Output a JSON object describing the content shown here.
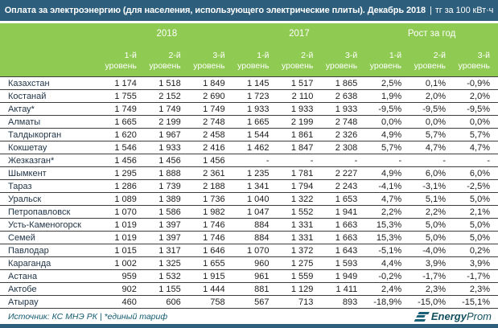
{
  "header": {
    "separator": "|"
  },
  "chart_data": {
    "type": "table",
    "title": "Оплата за электроэнергию (для населения, использующего электрические плиты). Декабрь 2018",
    "unit": "тг за 100 кВт·ч",
    "col_groups": [
      {
        "label": "2018",
        "span": 3
      },
      {
        "label": "2017",
        "span": 3
      },
      {
        "label": "Рост за год",
        "span": 3
      }
    ],
    "sub_columns": [
      {
        "top": "1-й",
        "word": "уровень"
      },
      {
        "top": "2-й",
        "word": "уровень"
      },
      {
        "top": "3-й",
        "word": "уровень"
      },
      {
        "top": "1-й",
        "word": "уровень"
      },
      {
        "top": "2-й",
        "word": "уровень"
      },
      {
        "top": "3-й",
        "word": "уровень"
      },
      {
        "top": "1-й",
        "word": "уровень"
      },
      {
        "top": "2-й",
        "word": "уровень"
      },
      {
        "top": "3-й",
        "word": "уровень"
      }
    ],
    "rows": [
      {
        "region": "Казахстан",
        "values": [
          "1 174",
          "1 518",
          "1 849",
          "1 145",
          "1 517",
          "1 865",
          "2,5%",
          "0,1%",
          "-0,9%"
        ]
      },
      {
        "region": "Костанай",
        "values": [
          "1 755",
          "2 152",
          "2 690",
          "1 723",
          "2 110",
          "2 638",
          "1,9%",
          "2,0%",
          "2,0%"
        ]
      },
      {
        "region": "Актау*",
        "values": [
          "1 749",
          "1 749",
          "1 749",
          "1 933",
          "1 933",
          "1 933",
          "-9,5%",
          "-9,5%",
          "-9,5%"
        ]
      },
      {
        "region": "Алматы",
        "values": [
          "1 665",
          "2 199",
          "2 748",
          "1 665",
          "2 199",
          "2 748",
          "0,0%",
          "0,0%",
          "0,0%"
        ]
      },
      {
        "region": "Талдыкорган",
        "values": [
          "1 620",
          "1 967",
          "2 458",
          "1 544",
          "1 861",
          "2 326",
          "4,9%",
          "5,7%",
          "5,7%"
        ]
      },
      {
        "region": "Кокшетау",
        "values": [
          "1 546",
          "1 933",
          "2 416",
          "1 462",
          "1 847",
          "2 308",
          "5,7%",
          "4,7%",
          "4,7%"
        ]
      },
      {
        "region": "Жезказган*",
        "values": [
          "1 456",
          "1 456",
          "1 456",
          "-",
          "-",
          "-",
          "-",
          "-",
          "-"
        ]
      },
      {
        "region": "Шымкент",
        "values": [
          "1 295",
          "1 888",
          "2 361",
          "1 235",
          "1 781",
          "2 227",
          "4,9%",
          "6,0%",
          "6,0%"
        ]
      },
      {
        "region": "Тараз",
        "values": [
          "1 286",
          "1 739",
          "2 188",
          "1 341",
          "1 794",
          "2 243",
          "-4,1%",
          "-3,1%",
          "-2,5%"
        ]
      },
      {
        "region": "Уральск",
        "values": [
          "1 089",
          "1 389",
          "1 736",
          "1 040",
          "1 322",
          "1 653",
          "4,7%",
          "5,1%",
          "5,0%"
        ]
      },
      {
        "region": "Петропавловск",
        "values": [
          "1 070",
          "1 586",
          "1 982",
          "1 047",
          "1 552",
          "1 941",
          "2,2%",
          "2,2%",
          "2,1%"
        ]
      },
      {
        "region": "Усть-Каменогорск",
        "values": [
          "1 019",
          "1 397",
          "1 746",
          "884",
          "1 331",
          "1 663",
          "15,3%",
          "5,0%",
          "5,0%"
        ]
      },
      {
        "region": "Семей",
        "values": [
          "1 019",
          "1 397",
          "1 746",
          "884",
          "1 331",
          "1 663",
          "15,3%",
          "5,0%",
          "5,0%"
        ]
      },
      {
        "region": "Павлодар",
        "values": [
          "1 015",
          "1 317",
          "1 646",
          "1 070",
          "1 372",
          "1 643",
          "-5,1%",
          "-4,0%",
          "0,2%"
        ]
      },
      {
        "region": "Караганда",
        "values": [
          "1 002",
          "1 325",
          "1 655",
          "960",
          "1 275",
          "1 593",
          "4,4%",
          "3,9%",
          "3,9%"
        ]
      },
      {
        "region": "Астана",
        "values": [
          "959",
          "1 532",
          "1 915",
          "961",
          "1 559",
          "1 949",
          "-0,2%",
          "-1,7%",
          "-1,7%"
        ]
      },
      {
        "region": "Актобе",
        "values": [
          "902",
          "1 155",
          "1 444",
          "881",
          "1 129",
          "1 411",
          "2,4%",
          "2,3%",
          "2,3%"
        ]
      },
      {
        "region": "Атырау",
        "values": [
          "460",
          "606",
          "758",
          "567",
          "713",
          "893",
          "-18,9%",
          "-15,0%",
          "-15,1%"
        ]
      }
    ]
  },
  "footer": {
    "source": "Источник: КС МНЭ РК",
    "separator": "|",
    "note": "*единый тариф",
    "brand_bold": "Energy",
    "brand_light": "Prom"
  },
  "colors": {
    "header_bar": "#2d5f7d",
    "header_green": "#8fcb52",
    "footer_teal": "#135a70",
    "row_border": "#3d3d3d"
  }
}
